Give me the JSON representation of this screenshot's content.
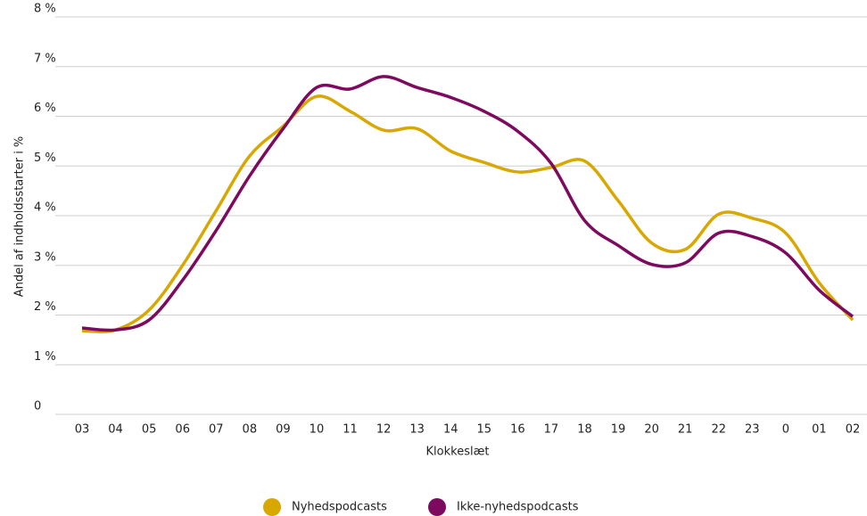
{
  "chart_data": {
    "type": "line",
    "x_label": "Klokkeslæt",
    "y_label": "Andel af indholdsstarter i %",
    "categories": [
      "03",
      "04",
      "05",
      "06",
      "07",
      "08",
      "09",
      "10",
      "11",
      "12",
      "13",
      "14",
      "15",
      "16",
      "17",
      "18",
      "19",
      "20",
      "21",
      "22",
      "23",
      "0",
      "01",
      "02"
    ],
    "series": [
      {
        "name": "Nyhedspodcasts",
        "color": "#d9a800",
        "values": [
          1.68,
          1.7,
          2.1,
          3.0,
          4.1,
          5.2,
          5.8,
          6.4,
          6.1,
          5.72,
          5.75,
          5.3,
          5.07,
          4.88,
          4.97,
          5.1,
          4.3,
          3.45,
          3.32,
          4.03,
          3.95,
          3.65,
          2.65,
          1.9
        ]
      },
      {
        "name": "Ikke-nyhedspodcasts",
        "color": "#7d0a5e",
        "values": [
          1.74,
          1.7,
          1.9,
          2.7,
          3.7,
          4.8,
          5.75,
          6.58,
          6.55,
          6.8,
          6.58,
          6.38,
          6.1,
          5.7,
          5.05,
          3.9,
          3.4,
          3.02,
          3.05,
          3.65,
          3.58,
          3.25,
          2.5,
          1.97
        ]
      }
    ],
    "ylim": [
      0,
      8
    ],
    "yticks": [
      0,
      {
        "value": 1,
        "label": "1 %"
      },
      {
        "value": 2,
        "label": "2 %"
      },
      {
        "value": 3,
        "label": "3 %"
      },
      {
        "value": 4,
        "label": "4 %"
      },
      {
        "value": 5,
        "label": "5 %"
      },
      {
        "value": 6,
        "label": "6 %"
      },
      {
        "value": 7,
        "label": "7 %"
      },
      {
        "value": 8,
        "label": "8 %"
      }
    ],
    "grid": true,
    "legend": "bottom"
  }
}
